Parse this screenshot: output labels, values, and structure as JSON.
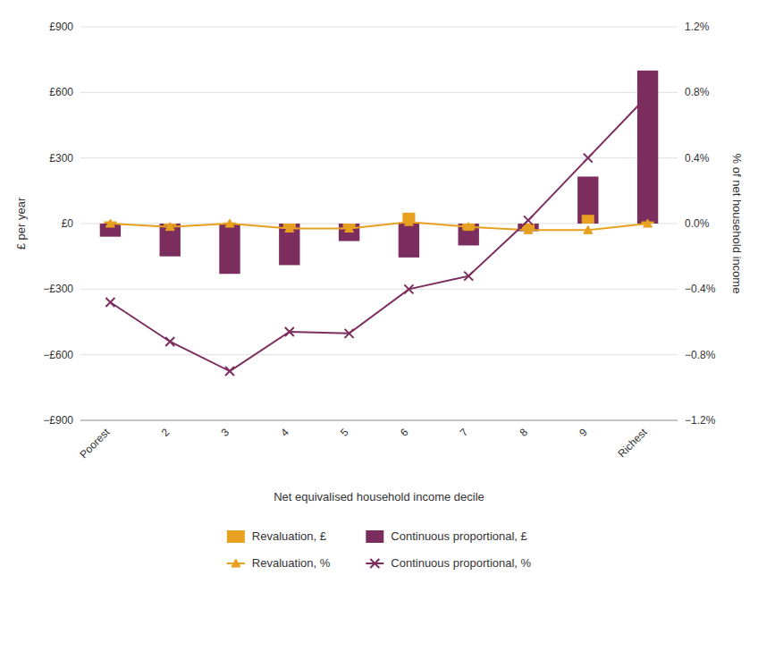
{
  "chart_data": {
    "type": "bar",
    "xlabel": "Net equivalised household income decile",
    "ylabel": "£ per year",
    "y2label": "% of net household income",
    "categories": [
      "Poorest",
      "2",
      "3",
      "4",
      "5",
      "6",
      "7",
      "8",
      "9",
      "Richest"
    ],
    "series": [
      {
        "name": "Revaluation, £",
        "type": "bar",
        "color": "#E8A020",
        "values": [
          10,
          -10,
          5,
          -20,
          -20,
          50,
          -30,
          -30,
          40,
          10
        ]
      },
      {
        "name": "Continuous proportional, £",
        "type": "bar",
        "color": "#7B2D5E",
        "values": [
          -60,
          -150,
          -230,
          -190,
          -80,
          -155,
          -100,
          -35,
          215,
          700
        ]
      },
      {
        "name": "Revaluation, %",
        "type": "line",
        "axis": "y2",
        "marker": "triangle",
        "color": "#E8A020",
        "values": [
          0.0,
          -0.02,
          0.0,
          -0.03,
          -0.03,
          0.01,
          -0.02,
          -0.04,
          -0.04,
          0.0
        ]
      },
      {
        "name": "Continuous proportional, %",
        "type": "line",
        "axis": "y2",
        "marker": "x",
        "color": "#7B2D5E",
        "values": [
          -0.48,
          -0.72,
          -0.9,
          -0.66,
          -0.67,
          -0.4,
          -0.32,
          0.02,
          0.4,
          0.78
        ]
      }
    ],
    "ylim": [
      -900,
      900
    ],
    "yticks": [
      {
        "value": -900,
        "label": "−£900"
      },
      {
        "value": -600,
        "label": "−£600"
      },
      {
        "value": -300,
        "label": "−£300"
      },
      {
        "value": 0,
        "label": "£0"
      },
      {
        "value": 300,
        "label": "£300"
      },
      {
        "value": 600,
        "label": "£600"
      },
      {
        "value": 900,
        "label": "£900"
      }
    ],
    "y2lim": [
      -1.2,
      1.2
    ],
    "y2ticks": [
      {
        "value": -1.2,
        "label": "−1.2%"
      },
      {
        "value": -0.8,
        "label": "−0.8%"
      },
      {
        "value": -0.4,
        "label": "−0.4%"
      },
      {
        "value": 0.0,
        "label": "0.0%"
      },
      {
        "value": 0.4,
        "label": "0.4%"
      },
      {
        "value": 0.8,
        "label": "0.8%"
      },
      {
        "value": 1.2,
        "label": "1.2%"
      }
    ],
    "grid": true,
    "legend": "bottom"
  }
}
